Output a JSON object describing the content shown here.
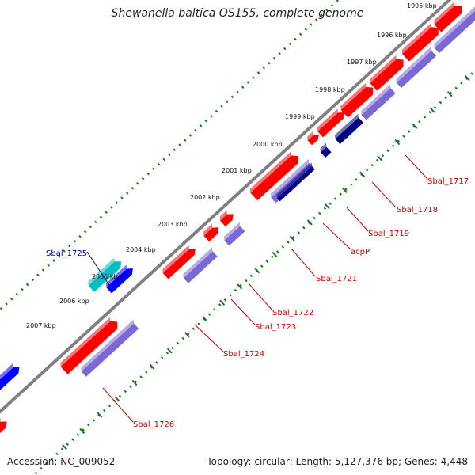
{
  "title": "Shewanella baltica OS155, complete genome",
  "footer": {
    "accession": "Accession: NC_009052",
    "summary": "Topology: circular; Length: 5,127,376 bp; Genes: 4,448"
  },
  "colors": {
    "backbone": "#808080",
    "tick_ruler": "#1a7a1a",
    "cds_forward": "#ff0000",
    "cds_reverse": "#0000ff",
    "orf_track": "#7b68d6",
    "dark_track": "#000080",
    "trna": "#00bfbf",
    "other_feature": "#f0e68c",
    "label_red": "#d00000",
    "label_blue": "#0000b0"
  },
  "kbp_labels": [
    "1995 kbp",
    "1996 kbp",
    "1997 kbp",
    "1998 kbp",
    "1999 kbp",
    "2000 kbp",
    "2001 kbp",
    "2002 kbp",
    "2003 kbp",
    "2004 kbp",
    "2005 kbp",
    "2006 kbp",
    "2007 kbp"
  ],
  "gene_labels": [
    {
      "text": "Sbal_1717",
      "color": "red"
    },
    {
      "text": "Sbal_1718",
      "color": "red"
    },
    {
      "text": "Sbal_1719",
      "color": "red"
    },
    {
      "text": "acpP",
      "color": "red"
    },
    {
      "text": "Sbal_1721",
      "color": "red"
    },
    {
      "text": "Sbal_1722",
      "color": "red"
    },
    {
      "text": "Sbal_1723",
      "color": "red"
    },
    {
      "text": "Sbal_1724",
      "color": "red"
    },
    {
      "text": "Sbal_1725",
      "color": "blue"
    },
    {
      "text": "Sbal_1726",
      "color": "red"
    }
  ]
}
